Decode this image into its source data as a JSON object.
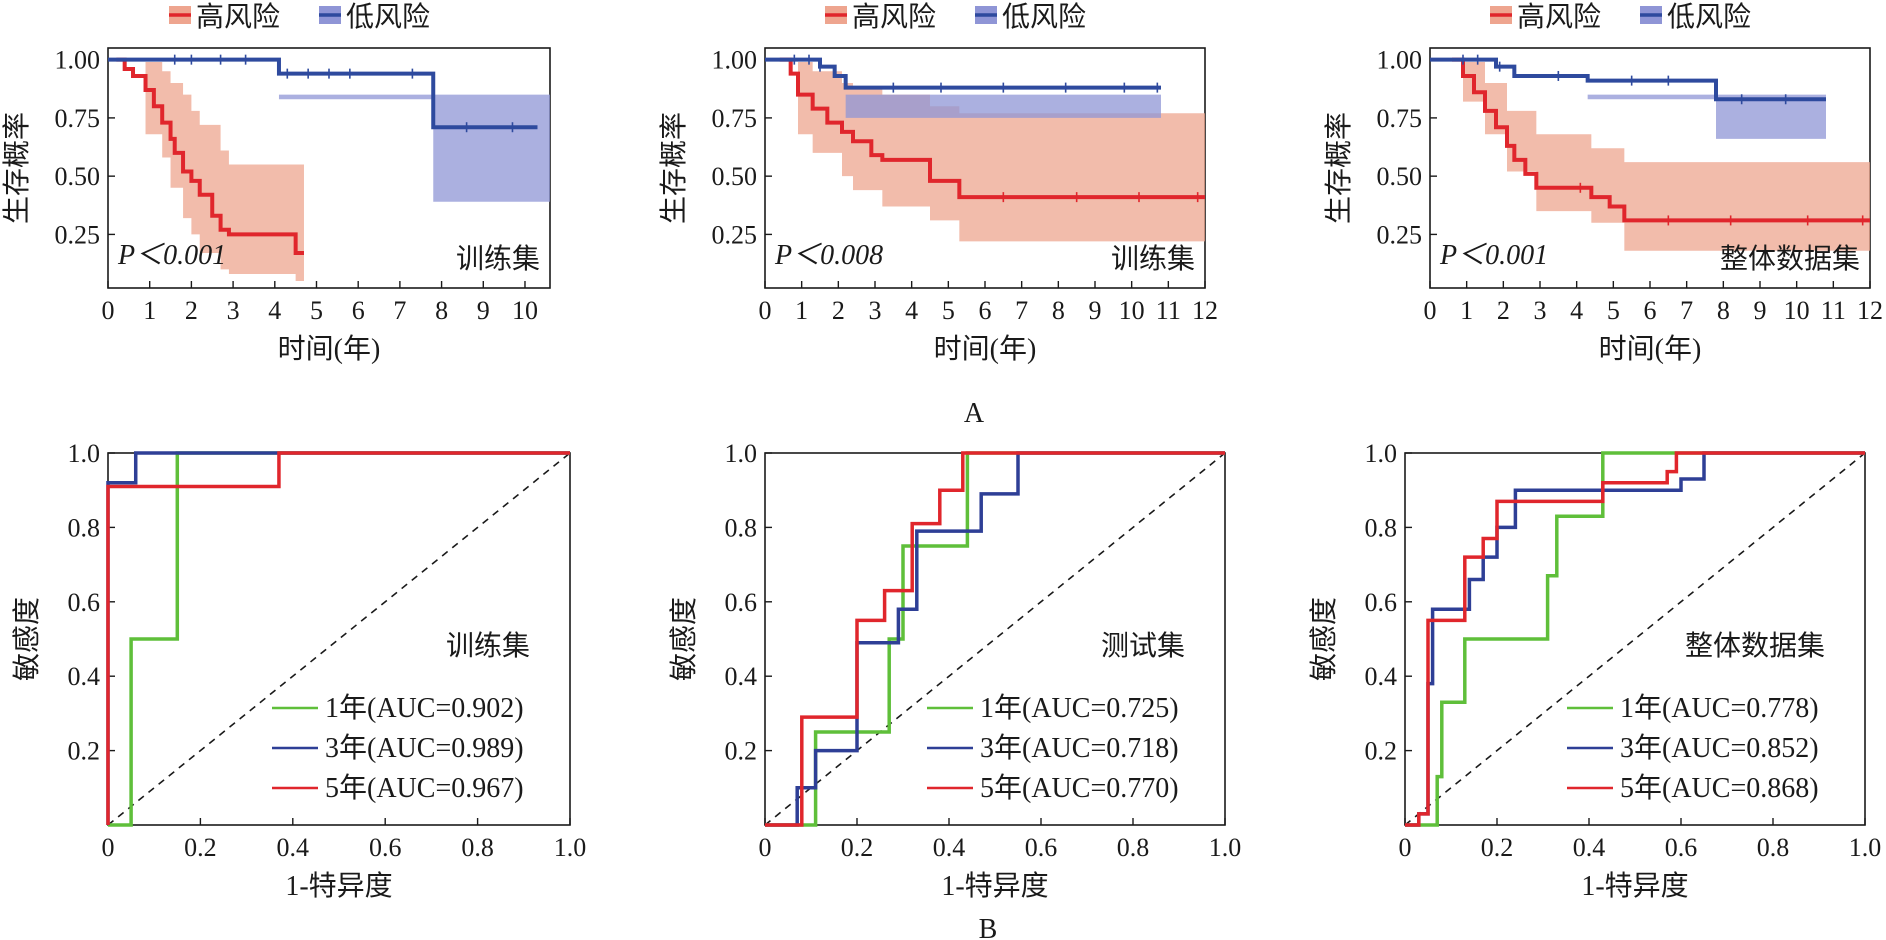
{
  "panel_labels": [
    "A",
    "B"
  ],
  "colors": {
    "high": "#e0262c",
    "low": "#2e4a9e",
    "high_band": "#eea58f",
    "low_band": "#8f95d6",
    "one_year": "#5fbf3a",
    "three_year": "#2e3f96",
    "five_year": "#e0262c",
    "axis": "#1a1a1a"
  },
  "chart_data": [
    {
      "type": "line",
      "kind": "km",
      "ylabel": "生存概率",
      "xlabel": "时间(年)",
      "annotation": "训练集",
      "pvalue_text": "P＜0.001",
      "xlim": [
        0,
        10.6
      ],
      "ylim": [
        0.02,
        1.05
      ],
      "xticks": [
        0,
        1,
        2,
        3,
        4,
        5,
        6,
        7,
        8,
        9,
        10
      ],
      "yticks": [
        "0.25",
        "0.50",
        "0.75",
        "1.00"
      ],
      "legend": [
        "高风险",
        "低风险"
      ],
      "series": [
        {
          "name": "高风险",
          "color_key": "high",
          "x": [
            0.2,
            0.4,
            0.6,
            0.9,
            1.1,
            1.3,
            1.5,
            1.6,
            1.8,
            2.0,
            2.2,
            2.5,
            2.7,
            2.9,
            4.5,
            4.7
          ],
          "y": [
            1.0,
            0.96,
            0.93,
            0.87,
            0.8,
            0.73,
            0.66,
            0.6,
            0.52,
            0.48,
            0.42,
            0.33,
            0.27,
            0.25,
            0.17,
            0.17
          ]
        },
        {
          "name": "低风险",
          "color_key": "low",
          "x": [
            0,
            4.1,
            7.8,
            10.3
          ],
          "y": [
            1.0,
            0.94,
            0.71,
            0.71
          ]
        }
      ],
      "bands": [
        {
          "color_key": "high_band",
          "x": [
            0.9,
            1.3,
            1.5,
            1.8,
            2.0,
            2.2,
            2.7,
            2.9,
            4.5,
            4.7
          ],
          "lo": [
            0.68,
            0.58,
            0.45,
            0.32,
            0.25,
            0.17,
            0.1,
            0.08,
            0.05,
            0.05
          ],
          "hi": [
            0.99,
            0.95,
            0.9,
            0.85,
            0.78,
            0.72,
            0.61,
            0.55,
            0.55,
            0.55
          ]
        },
        {
          "color_key": "low_band",
          "x": [
            7.8,
            10.6
          ],
          "lo": [
            0.39,
            0.39
          ],
          "hi": [
            0.85,
            0.85
          ]
        },
        {
          "color_key": "low_band",
          "x": [
            4.1,
            7.8
          ],
          "lo": [
            0.83,
            0.83
          ],
          "hi": [
            0.85,
            0.85
          ]
        }
      ],
      "censor": [
        {
          "series": 1,
          "x": [
            1.6,
            2.0,
            2.7,
            3.3,
            4.3,
            4.8,
            5.3,
            5.8,
            7.3,
            8.6,
            9.7
          ]
        }
      ]
    },
    {
      "type": "line",
      "kind": "km",
      "ylabel": "生存概率",
      "xlabel": "时间(年)",
      "annotation": "训练集",
      "pvalue_text": "P＜0.008",
      "xlim": [
        0,
        12
      ],
      "ylim": [
        0.02,
        1.05
      ],
      "xticks": [
        0,
        1,
        2,
        3,
        4,
        5,
        6,
        7,
        8,
        9,
        10,
        11,
        12
      ],
      "yticks": [
        "0.25",
        "0.50",
        "0.75",
        "1.00"
      ],
      "legend": [
        "高风险",
        "低风险"
      ],
      "series": [
        {
          "name": "高风险",
          "color_key": "high",
          "x": [
            0.4,
            0.7,
            0.9,
            1.3,
            1.7,
            2.1,
            2.4,
            2.9,
            3.2,
            4.5,
            5.3,
            12
          ],
          "y": [
            1.0,
            0.94,
            0.85,
            0.79,
            0.73,
            0.69,
            0.65,
            0.59,
            0.57,
            0.48,
            0.41,
            0.41
          ]
        },
        {
          "name": "低风险",
          "color_key": "low",
          "x": [
            0,
            1.5,
            1.9,
            2.2,
            10.8
          ],
          "y": [
            1.0,
            0.97,
            0.93,
            0.88,
            0.88
          ]
        }
      ],
      "bands": [
        {
          "color_key": "high_band",
          "x": [
            0.9,
            1.3,
            2.1,
            2.4,
            3.2,
            4.5,
            5.3,
            12
          ],
          "lo": [
            0.68,
            0.6,
            0.5,
            0.44,
            0.37,
            0.31,
            0.22,
            0.22
          ],
          "hi": [
            0.99,
            0.95,
            0.9,
            0.88,
            0.85,
            0.8,
            0.77,
            0.77
          ]
        },
        {
          "color_key": "low_band",
          "x": [
            2.2,
            10.8
          ],
          "lo": [
            0.75,
            0.75
          ],
          "hi": [
            0.85,
            0.85
          ]
        }
      ],
      "censor": [
        {
          "series": 1,
          "x": [
            0.8,
            1.2,
            1.5,
            3.5,
            4.8,
            6.5,
            8.2,
            9.8,
            10.7
          ]
        },
        {
          "series": 0,
          "x": [
            6.5,
            8.5,
            10.2,
            11.8
          ]
        }
      ]
    },
    {
      "type": "line",
      "kind": "km",
      "ylabel": "生存概率",
      "xlabel": "时间(年)",
      "annotation": "整体数据集",
      "pvalue_text": "P＜0.001",
      "xlim": [
        0,
        12
      ],
      "ylim": [
        0.02,
        1.05
      ],
      "xticks": [
        0,
        1,
        2,
        3,
        4,
        5,
        6,
        7,
        8,
        9,
        10,
        11,
        12
      ],
      "yticks": [
        "0.25",
        "0.50",
        "0.75",
        "1.00"
      ],
      "legend": [
        "高风险",
        "低风险"
      ],
      "series": [
        {
          "name": "高风险",
          "color_key": "high",
          "x": [
            0.6,
            0.9,
            1.2,
            1.5,
            1.8,
            2.1,
            2.3,
            2.6,
            2.9,
            3.5,
            4.4,
            4.9,
            5.3,
            12
          ],
          "y": [
            1.0,
            0.93,
            0.86,
            0.78,
            0.71,
            0.63,
            0.57,
            0.51,
            0.45,
            0.45,
            0.41,
            0.37,
            0.31,
            0.31
          ]
        },
        {
          "name": "低风险",
          "color_key": "low",
          "x": [
            0,
            1.8,
            2.3,
            4.3,
            7.8,
            10.8
          ],
          "y": [
            1.0,
            0.97,
            0.93,
            0.91,
            0.83,
            0.83
          ]
        }
      ],
      "bands": [
        {
          "color_key": "high_band",
          "x": [
            0.9,
            1.5,
            2.1,
            2.9,
            4.4,
            5.3,
            12
          ],
          "lo": [
            0.82,
            0.68,
            0.52,
            0.35,
            0.3,
            0.18,
            0.18
          ],
          "hi": [
            0.99,
            0.9,
            0.78,
            0.68,
            0.62,
            0.56,
            0.56
          ]
        },
        {
          "color_key": "low_band",
          "x": [
            7.8,
            10.8
          ],
          "lo": [
            0.66,
            0.66
          ],
          "hi": [
            0.85,
            0.85
          ]
        },
        {
          "color_key": "low_band",
          "x": [
            4.3,
            7.8
          ],
          "lo": [
            0.83,
            0.83
          ],
          "hi": [
            0.85,
            0.85
          ]
        }
      ],
      "censor": [
        {
          "series": 1,
          "x": [
            0.9,
            1.3,
            1.9,
            3.5,
            5.5,
            6.5,
            8.5,
            9.7
          ]
        },
        {
          "series": 0,
          "x": [
            4.1,
            6.5,
            8.2,
            10.3,
            11.8
          ]
        }
      ]
    },
    {
      "type": "line",
      "kind": "roc",
      "ylabel": "敏感度",
      "xlabel": "1-特异度",
      "annotation": "训练集",
      "xlim": [
        0,
        1
      ],
      "ylim": [
        0,
        1
      ],
      "xticks": [
        "0",
        "0.2",
        "0.4",
        "0.6",
        "0.8",
        "1.0"
      ],
      "yticks": [
        "0.2",
        "0.4",
        "0.6",
        "0.8",
        "1.0"
      ],
      "legend": [
        "1年(AUC=0.902)",
        "3年(AUC=0.989)",
        "5年(AUC=0.967)"
      ],
      "series": [
        {
          "name": "1年(AUC=0.902)",
          "color_key": "one_year",
          "x": [
            0.0,
            0.05,
            0.05,
            0.15,
            0.15,
            1.0
          ],
          "y": [
            0.0,
            0.0,
            0.5,
            0.5,
            1.0,
            1.0
          ]
        },
        {
          "name": "3年(AUC=0.989)",
          "color_key": "three_year",
          "x": [
            0.0,
            0.0,
            0.06,
            0.06,
            0.37,
            1.0
          ],
          "y": [
            0.0,
            0.92,
            0.92,
            1.0,
            1.0,
            1.0
          ]
        },
        {
          "name": "5年(AUC=0.967)",
          "color_key": "five_year",
          "x": [
            0.0,
            0.0,
            0.37,
            0.37,
            1.0
          ],
          "y": [
            0.0,
            0.91,
            0.91,
            1.0,
            1.0
          ]
        }
      ]
    },
    {
      "type": "line",
      "kind": "roc",
      "ylabel": "敏感度",
      "xlabel": "1-特异度",
      "annotation": "测试集",
      "xlim": [
        0,
        1
      ],
      "ylim": [
        0,
        1
      ],
      "xticks": [
        "0",
        "0.2",
        "0.4",
        "0.6",
        "0.8",
        "1.0"
      ],
      "yticks": [
        "0.2",
        "0.4",
        "0.6",
        "0.8",
        "1.0"
      ],
      "legend": [
        "1年(AUC=0.725)",
        "3年(AUC=0.718)",
        "5年(AUC=0.770)"
      ],
      "series": [
        {
          "name": "1年(AUC=0.725)",
          "color_key": "one_year",
          "x": [
            0.0,
            0.11,
            0.11,
            0.27,
            0.27,
            0.3,
            0.3,
            0.44,
            0.44,
            1.0
          ],
          "y": [
            0.0,
            0.0,
            0.25,
            0.25,
            0.5,
            0.5,
            0.75,
            0.75,
            1.0,
            1.0
          ]
        },
        {
          "name": "3年(AUC=0.718)",
          "color_key": "three_year",
          "x": [
            0.0,
            0.07,
            0.07,
            0.11,
            0.11,
            0.2,
            0.2,
            0.29,
            0.29,
            0.33,
            0.33,
            0.47,
            0.47,
            0.55,
            0.55,
            1.0
          ],
          "y": [
            0.0,
            0.0,
            0.1,
            0.1,
            0.2,
            0.2,
            0.49,
            0.49,
            0.58,
            0.58,
            0.79,
            0.79,
            0.89,
            0.89,
            1.0,
            1.0
          ]
        },
        {
          "name": "5年(AUC=0.770)",
          "color_key": "five_year",
          "x": [
            0.0,
            0.08,
            0.08,
            0.2,
            0.2,
            0.26,
            0.26,
            0.32,
            0.32,
            0.38,
            0.38,
            0.43,
            0.43,
            1.0
          ],
          "y": [
            0.0,
            0.0,
            0.29,
            0.29,
            0.55,
            0.55,
            0.63,
            0.63,
            0.81,
            0.81,
            0.9,
            0.9,
            1.0,
            1.0
          ]
        }
      ]
    },
    {
      "type": "line",
      "kind": "roc",
      "ylabel": "敏感度",
      "xlabel": "1-特异度",
      "annotation": "整体数据集",
      "xlim": [
        0,
        1
      ],
      "ylim": [
        0,
        1
      ],
      "xticks": [
        "0",
        "0.2",
        "0.4",
        "0.6",
        "0.8",
        "1.0"
      ],
      "yticks": [
        "0.2",
        "0.4",
        "0.6",
        "0.8",
        "1.0"
      ],
      "legend": [
        "1年(AUC=0.778)",
        "3年(AUC=0.852)",
        "5年(AUC=0.868)"
      ],
      "series": [
        {
          "name": "1年(AUC=0.778)",
          "color_key": "one_year",
          "x": [
            0.0,
            0.07,
            0.07,
            0.08,
            0.08,
            0.13,
            0.13,
            0.2,
            0.2,
            0.31,
            0.31,
            0.33,
            0.33,
            0.43,
            0.43,
            0.6,
            0.6,
            1.0
          ],
          "y": [
            0.0,
            0.0,
            0.13,
            0.13,
            0.33,
            0.33,
            0.5,
            0.5,
            0.5,
            0.5,
            0.67,
            0.67,
            0.83,
            0.83,
            1.0,
            1.0,
            1.0,
            1.0
          ]
        },
        {
          "name": "3年(AUC=0.852)",
          "color_key": "three_year",
          "x": [
            0.0,
            0.03,
            0.03,
            0.05,
            0.05,
            0.06,
            0.06,
            0.14,
            0.14,
            0.17,
            0.17,
            0.2,
            0.2,
            0.24,
            0.24,
            0.31,
            0.31,
            0.6,
            0.6,
            0.65,
            0.65,
            1.0
          ],
          "y": [
            0.0,
            0.0,
            0.03,
            0.03,
            0.38,
            0.38,
            0.58,
            0.58,
            0.66,
            0.66,
            0.72,
            0.72,
            0.8,
            0.8,
            0.9,
            0.9,
            0.9,
            0.9,
            0.93,
            0.93,
            1.0,
            1.0
          ]
        },
        {
          "name": "5年(AUC=0.868)",
          "color_key": "five_year",
          "x": [
            0.0,
            0.03,
            0.03,
            0.05,
            0.05,
            0.07,
            0.07,
            0.13,
            0.13,
            0.17,
            0.17,
            0.2,
            0.2,
            0.43,
            0.43,
            0.57,
            0.57,
            0.59,
            0.59,
            1.0
          ],
          "y": [
            0.0,
            0.0,
            0.03,
            0.03,
            0.55,
            0.55,
            0.55,
            0.55,
            0.72,
            0.72,
            0.77,
            0.77,
            0.87,
            0.87,
            0.92,
            0.92,
            0.95,
            0.95,
            1.0,
            1.0
          ]
        }
      ]
    }
  ]
}
